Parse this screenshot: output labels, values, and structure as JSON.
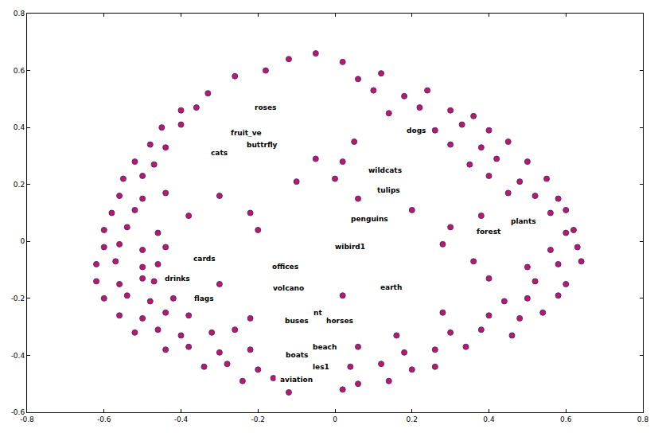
{
  "chart_data": {
    "type": "scatter",
    "marker": "circle",
    "color": "#c0185a",
    "grid": false,
    "xlim": [
      -0.8,
      0.8
    ],
    "ylim": [
      -0.6,
      0.8
    ],
    "xticks": [
      -0.8,
      -0.6,
      -0.4,
      -0.2,
      0,
      0.2,
      0.4,
      0.6,
      0.8
    ],
    "yticks": [
      -0.6,
      -0.4,
      -0.2,
      0,
      0.2,
      0.4,
      0.6,
      0.8
    ],
    "x": [
      -0.12,
      -0.05,
      0.02,
      -0.26,
      -0.18,
      0.06,
      0.12,
      -0.33,
      0.1,
      0.18,
      0.24,
      -0.4,
      -0.36,
      0.14,
      0.22,
      0.3,
      0.36,
      -0.45,
      -0.4,
      0.26,
      0.33,
      0.4,
      -0.48,
      -0.44,
      0.05,
      0.3,
      0.38,
      0.45,
      -0.52,
      -0.47,
      -0.05,
      0.02,
      0.35,
      0.42,
      0.5,
      -0.55,
      -0.5,
      -0.1,
      0.0,
      0.4,
      0.48,
      0.55,
      -0.56,
      -0.5,
      -0.44,
      -0.3,
      0.06,
      0.45,
      0.52,
      0.58,
      -0.58,
      -0.52,
      -0.38,
      -0.22,
      0.2,
      0.38,
      0.56,
      0.6,
      -0.6,
      -0.54,
      -0.46,
      -0.2,
      0.3,
      0.6,
      0.62,
      -0.6,
      -0.56,
      -0.5,
      -0.44,
      0.28,
      0.56,
      0.63,
      -0.62,
      -0.57,
      -0.5,
      -0.46,
      0.36,
      0.5,
      0.58,
      0.64,
      -0.62,
      -0.56,
      -0.5,
      -0.47,
      -0.3,
      0.4,
      0.52,
      0.6,
      -0.6,
      -0.54,
      -0.48,
      -0.42,
      0.02,
      0.44,
      0.5,
      0.58,
      -0.56,
      -0.5,
      -0.44,
      -0.38,
      -0.22,
      0.28,
      0.4,
      0.48,
      0.54,
      -0.52,
      -0.46,
      -0.4,
      -0.32,
      -0.26,
      0.16,
      0.3,
      0.38,
      0.46,
      -0.44,
      -0.38,
      -0.3,
      -0.22,
      0.06,
      0.18,
      0.26,
      0.34,
      -0.34,
      -0.28,
      -0.2,
      0.04,
      0.12,
      0.2,
      0.26,
      -0.24,
      -0.16,
      0.06,
      0.14,
      -0.12,
      0.02
    ],
    "y": [
      0.64,
      0.66,
      0.63,
      0.58,
      0.6,
      0.57,
      0.59,
      0.52,
      0.53,
      0.51,
      0.53,
      0.46,
      0.47,
      0.45,
      0.47,
      0.46,
      0.44,
      0.4,
      0.41,
      0.39,
      0.41,
      0.39,
      0.34,
      0.33,
      0.35,
      0.34,
      0.33,
      0.35,
      0.28,
      0.27,
      0.29,
      0.28,
      0.27,
      0.29,
      0.28,
      0.22,
      0.23,
      0.21,
      0.22,
      0.23,
      0.21,
      0.22,
      0.16,
      0.15,
      0.17,
      0.16,
      0.15,
      0.17,
      0.16,
      0.15,
      0.1,
      0.11,
      0.09,
      0.1,
      0.11,
      0.09,
      0.1,
      0.11,
      0.04,
      0.05,
      0.03,
      0.04,
      0.05,
      0.03,
      0.04,
      -0.02,
      -0.01,
      -0.03,
      -0.02,
      -0.01,
      -0.03,
      -0.02,
      -0.08,
      -0.07,
      -0.09,
      -0.08,
      -0.07,
      -0.09,
      -0.08,
      -0.07,
      -0.14,
      -0.15,
      -0.13,
      -0.14,
      -0.15,
      -0.13,
      -0.14,
      -0.15,
      -0.2,
      -0.19,
      -0.21,
      -0.2,
      -0.19,
      -0.21,
      -0.2,
      -0.19,
      -0.26,
      -0.27,
      -0.25,
      -0.26,
      -0.27,
      -0.25,
      -0.26,
      -0.27,
      -0.25,
      -0.32,
      -0.31,
      -0.33,
      -0.32,
      -0.31,
      -0.33,
      -0.32,
      -0.31,
      -0.33,
      -0.38,
      -0.37,
      -0.39,
      -0.38,
      -0.37,
      -0.39,
      -0.38,
      -0.37,
      -0.44,
      -0.43,
      -0.45,
      -0.44,
      -0.43,
      -0.45,
      -0.44,
      -0.49,
      -0.48,
      -0.5,
      -0.49,
      -0.53,
      -0.52
    ],
    "annotations": [
      {
        "text": "roses",
        "x": -0.18,
        "y": 0.47
      },
      {
        "text": "fruit_ve",
        "x": -0.23,
        "y": 0.38
      },
      {
        "text": "buttrfly",
        "x": -0.19,
        "y": 0.34
      },
      {
        "text": "cats",
        "x": -0.3,
        "y": 0.31
      },
      {
        "text": "dogs",
        "x": 0.21,
        "y": 0.39
      },
      {
        "text": "wildcats",
        "x": 0.13,
        "y": 0.25
      },
      {
        "text": "tulips",
        "x": 0.14,
        "y": 0.18
      },
      {
        "text": "penguins",
        "x": 0.09,
        "y": 0.08
      },
      {
        "text": "plants",
        "x": 0.49,
        "y": 0.07
      },
      {
        "text": "forest",
        "x": 0.4,
        "y": 0.035
      },
      {
        "text": "wibird1",
        "x": 0.04,
        "y": -0.02
      },
      {
        "text": "cards",
        "x": -0.34,
        "y": -0.06
      },
      {
        "text": "offices",
        "x": -0.13,
        "y": -0.09
      },
      {
        "text": "drinks",
        "x": -0.41,
        "y": -0.13
      },
      {
        "text": "volcano",
        "x": -0.12,
        "y": -0.165
      },
      {
        "text": "flags",
        "x": -0.34,
        "y": -0.2
      },
      {
        "text": "earth",
        "x": 0.145,
        "y": -0.16
      },
      {
        "text": "nt",
        "x": -0.045,
        "y": -0.25
      },
      {
        "text": "buses",
        "x": -0.1,
        "y": -0.28
      },
      {
        "text": "horses",
        "x": 0.012,
        "y": -0.28
      },
      {
        "text": "beach",
        "x": -0.026,
        "y": -0.37
      },
      {
        "text": "boats",
        "x": -0.1,
        "y": -0.4
      },
      {
        "text": "les1",
        "x": -0.037,
        "y": -0.44
      },
      {
        "text": "aviation",
        "x": -0.1,
        "y": -0.485
      }
    ]
  }
}
